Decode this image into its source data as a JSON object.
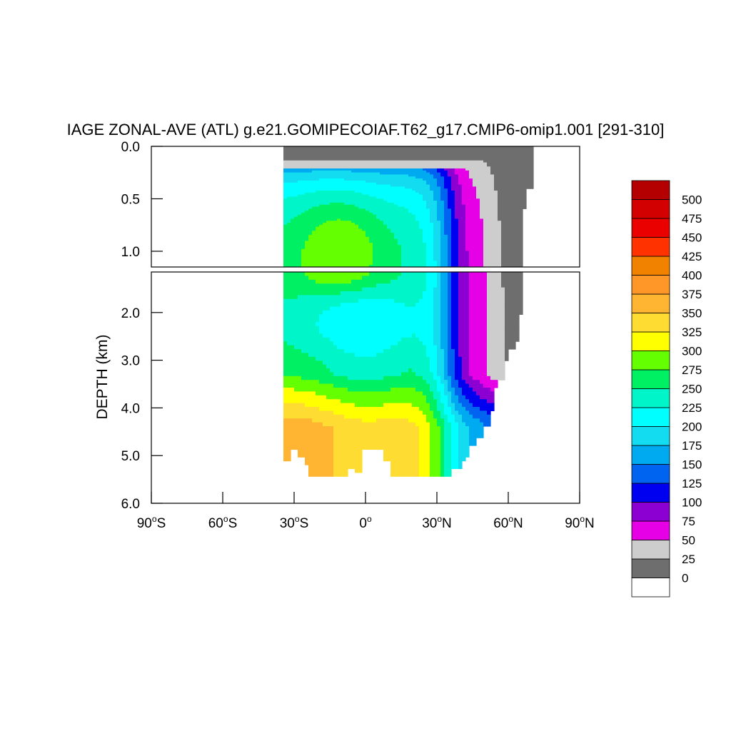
{
  "chart_data": {
    "type": "contour",
    "title": "IAGE ZONAL-AVE (ATL) g.e21.GOMIPECOIAF.T62_g17.CMIP6-omip1.001 [291-310]",
    "xlabel": "",
    "ylabel": "DEPTH (km)",
    "xlim": [
      -90,
      90
    ],
    "ylim_upper_panel": [
      0.0,
      1.15
    ],
    "ylim_lower_panel": [
      1.15,
      6.0
    ],
    "xticks": [
      {
        "value": -90,
        "label": "90°S",
        "deg": "90",
        "hemi": "S"
      },
      {
        "value": -60,
        "label": "60°S",
        "deg": "60",
        "hemi": "S"
      },
      {
        "value": -30,
        "label": "30°S",
        "deg": "30",
        "hemi": "S"
      },
      {
        "value": 0,
        "label": "0°",
        "deg": "0",
        "hemi": ""
      },
      {
        "value": 30,
        "label": "30°N",
        "deg": "30",
        "hemi": "N"
      },
      {
        "value": 60,
        "label": "60°N",
        "deg": "60",
        "hemi": "N"
      },
      {
        "value": 90,
        "label": "90°N",
        "deg": "90",
        "hemi": "N"
      }
    ],
    "yticks_upper": [
      {
        "value": 0.0,
        "label": "0.0"
      },
      {
        "value": 0.5,
        "label": "0.5"
      },
      {
        "value": 1.0,
        "label": "1.0"
      }
    ],
    "yticks_lower": [
      {
        "value": 2.0,
        "label": "2.0"
      },
      {
        "value": 3.0,
        "label": "3.0"
      },
      {
        "value": 4.0,
        "label": "4.0"
      },
      {
        "value": 5.0,
        "label": "5.0"
      },
      {
        "value": 6.0,
        "label": "6.0"
      }
    ],
    "levels": [
      0,
      25,
      50,
      75,
      100,
      125,
      150,
      175,
      200,
      225,
      250,
      275,
      300,
      325,
      350,
      375,
      400,
      425,
      450,
      475,
      500
    ],
    "colors": [
      "#ffffff",
      "#6e6e6e",
      "#cdcdcd",
      "#e600e6",
      "#8c00d2",
      "#0000f0",
      "#0064f0",
      "#00aaf0",
      "#14dcf0",
      "#00ffff",
      "#00f5c8",
      "#00f064",
      "#64ff00",
      "#ffff00",
      "#ffdc32",
      "#ffb432",
      "#ff9628",
      "#f08200",
      "#ff3200",
      "#eb0000",
      "#d20000",
      "#b40000"
    ],
    "age_field_model": {
      "x_range": [
        -34,
        70
      ],
      "bottom_depth_km": [
        [
          -34,
          5.1
        ],
        [
          -32,
          4.85
        ],
        [
          -28,
          5.0
        ],
        [
          -26,
          5.2
        ],
        [
          -24,
          5.4
        ],
        [
          -12,
          5.4
        ],
        [
          -8,
          5.3
        ],
        [
          -4,
          5.38
        ],
        [
          -2,
          4.9
        ],
        [
          6,
          4.9
        ],
        [
          8,
          5.1
        ],
        [
          10,
          5.4
        ],
        [
          34,
          5.4
        ],
        [
          36,
          5.3
        ],
        [
          40,
          5.1
        ],
        [
          42,
          5.0
        ],
        [
          44,
          4.8
        ],
        [
          47,
          4.6
        ],
        [
          50,
          4.4
        ],
        [
          52,
          4.1
        ],
        [
          54,
          3.6
        ],
        [
          56,
          3.4
        ],
        [
          58,
          3.0
        ],
        [
          60,
          2.8
        ],
        [
          63,
          2.6
        ],
        [
          65,
          2.0
        ],
        [
          65.5,
          1.2
        ],
        [
          66,
          0.6
        ],
        [
          68,
          0.4
        ],
        [
          70,
          0.0
        ]
      ]
    }
  }
}
